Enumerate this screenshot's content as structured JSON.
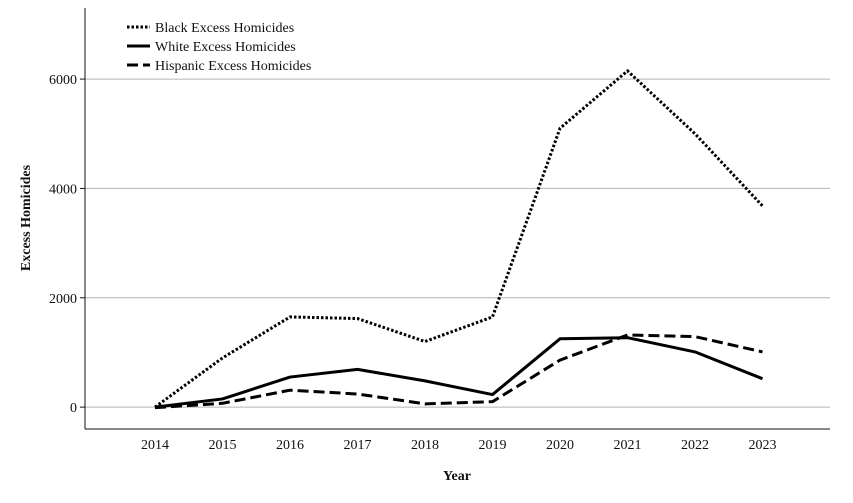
{
  "chart_data": {
    "type": "line",
    "title": "",
    "xlabel": "Year",
    "ylabel": "Excess Homicides",
    "x": [
      "2014",
      "2015",
      "2016",
      "2017",
      "2018",
      "2019",
      "2020",
      "2021",
      "2022",
      "2023"
    ],
    "ylim": [
      -400,
      7300
    ],
    "yticks": [
      0,
      2000,
      4000,
      6000
    ],
    "grid": true,
    "legend_position": "top-left",
    "series": [
      {
        "name": "Black Excess Homicides",
        "style": "dotted",
        "color": "#000000",
        "values": [
          0,
          900,
          1650,
          1620,
          1200,
          1650,
          5100,
          6150,
          5000,
          3680
        ]
      },
      {
        "name": "White Excess Homicides",
        "style": "solid",
        "color": "#000000",
        "values": [
          0,
          150,
          550,
          690,
          480,
          230,
          1250,
          1270,
          1010,
          520
        ]
      },
      {
        "name": "Hispanic Excess Homicides",
        "style": "dashed",
        "color": "#000000",
        "values": [
          -10,
          70,
          310,
          240,
          60,
          100,
          860,
          1320,
          1290,
          1010
        ]
      }
    ]
  }
}
